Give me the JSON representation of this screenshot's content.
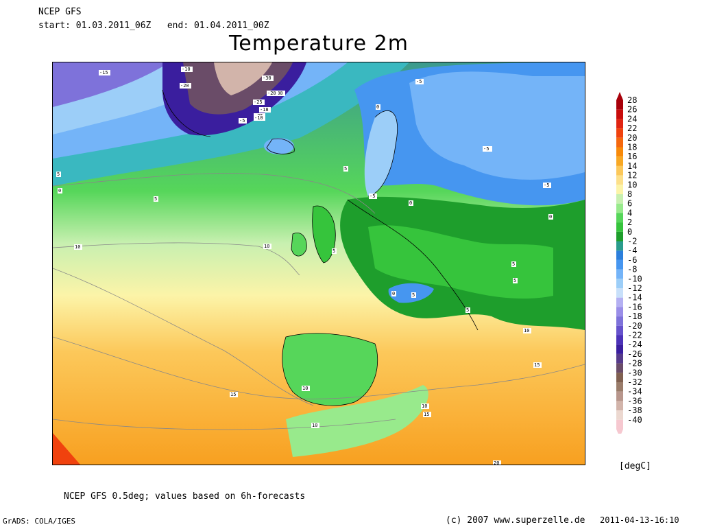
{
  "header": {
    "model": "NCEP GFS",
    "period": "start: 01.03.2011_06Z   end: 01.04.2011_00Z",
    "title": "Temperature 2m"
  },
  "colorbar": {
    "labels": [
      "28",
      "26",
      "24",
      "22",
      "20",
      "18",
      "16",
      "14",
      "12",
      "10",
      "8",
      "6",
      "4",
      "2",
      "0",
      "-2",
      "-4",
      "-6",
      "-8",
      "-10",
      "-12",
      "-14",
      "-16",
      "-18",
      "-20",
      "-22",
      "-24",
      "-26",
      "-28",
      "-30",
      "-32",
      "-34",
      "-36",
      "-38",
      "-40"
    ],
    "colors": [
      "#a8000a",
      "#c80c0c",
      "#e02412",
      "#f0420e",
      "#f5680e",
      "#f88a0a",
      "#f8a824",
      "#fcc85a",
      "#fde08a",
      "#fcf4a8",
      "#c8f0b0",
      "#98ea8c",
      "#56d65a",
      "#36c43c",
      "#1e9e2c",
      "#2a9c8c",
      "#2c7fdc",
      "#4696f0",
      "#74b4f8",
      "#9ccef8",
      "#c8e0fa",
      "#b4b0f2",
      "#9a8ee8",
      "#7e72da",
      "#6652cc",
      "#4c32b8",
      "#3a1e9e",
      "#563a8a",
      "#6a4c68",
      "#806050",
      "#9a7c6a",
      "#b8968c",
      "#d2b4aa",
      "#ecd8d0",
      "#f6c8d0"
    ],
    "unit": "[degC]"
  },
  "map": {
    "contour_labels": [
      "-15",
      "-10",
      "-20",
      "-25",
      "-30",
      "-30",
      "-20",
      "-25",
      "-18",
      "-10",
      "-5",
      "-5",
      "-5",
      "0",
      "5",
      "-5",
      "-5",
      "-5",
      "0",
      "5",
      "0",
      "5",
      "5",
      "10",
      "10",
      "5",
      "5",
      "5",
      "0",
      "5",
      "10",
      "15",
      "10",
      "15",
      "10",
      "10",
      "15",
      "20",
      "0"
    ]
  },
  "footer": {
    "note": "NCEP GFS 0.5deg; values based on 6h-forecasts",
    "grads": "GrADS: COLA/IGES",
    "copyright": "(c) 2007 www.superzelle.de",
    "timestamp": "2011-04-13-16:10"
  }
}
